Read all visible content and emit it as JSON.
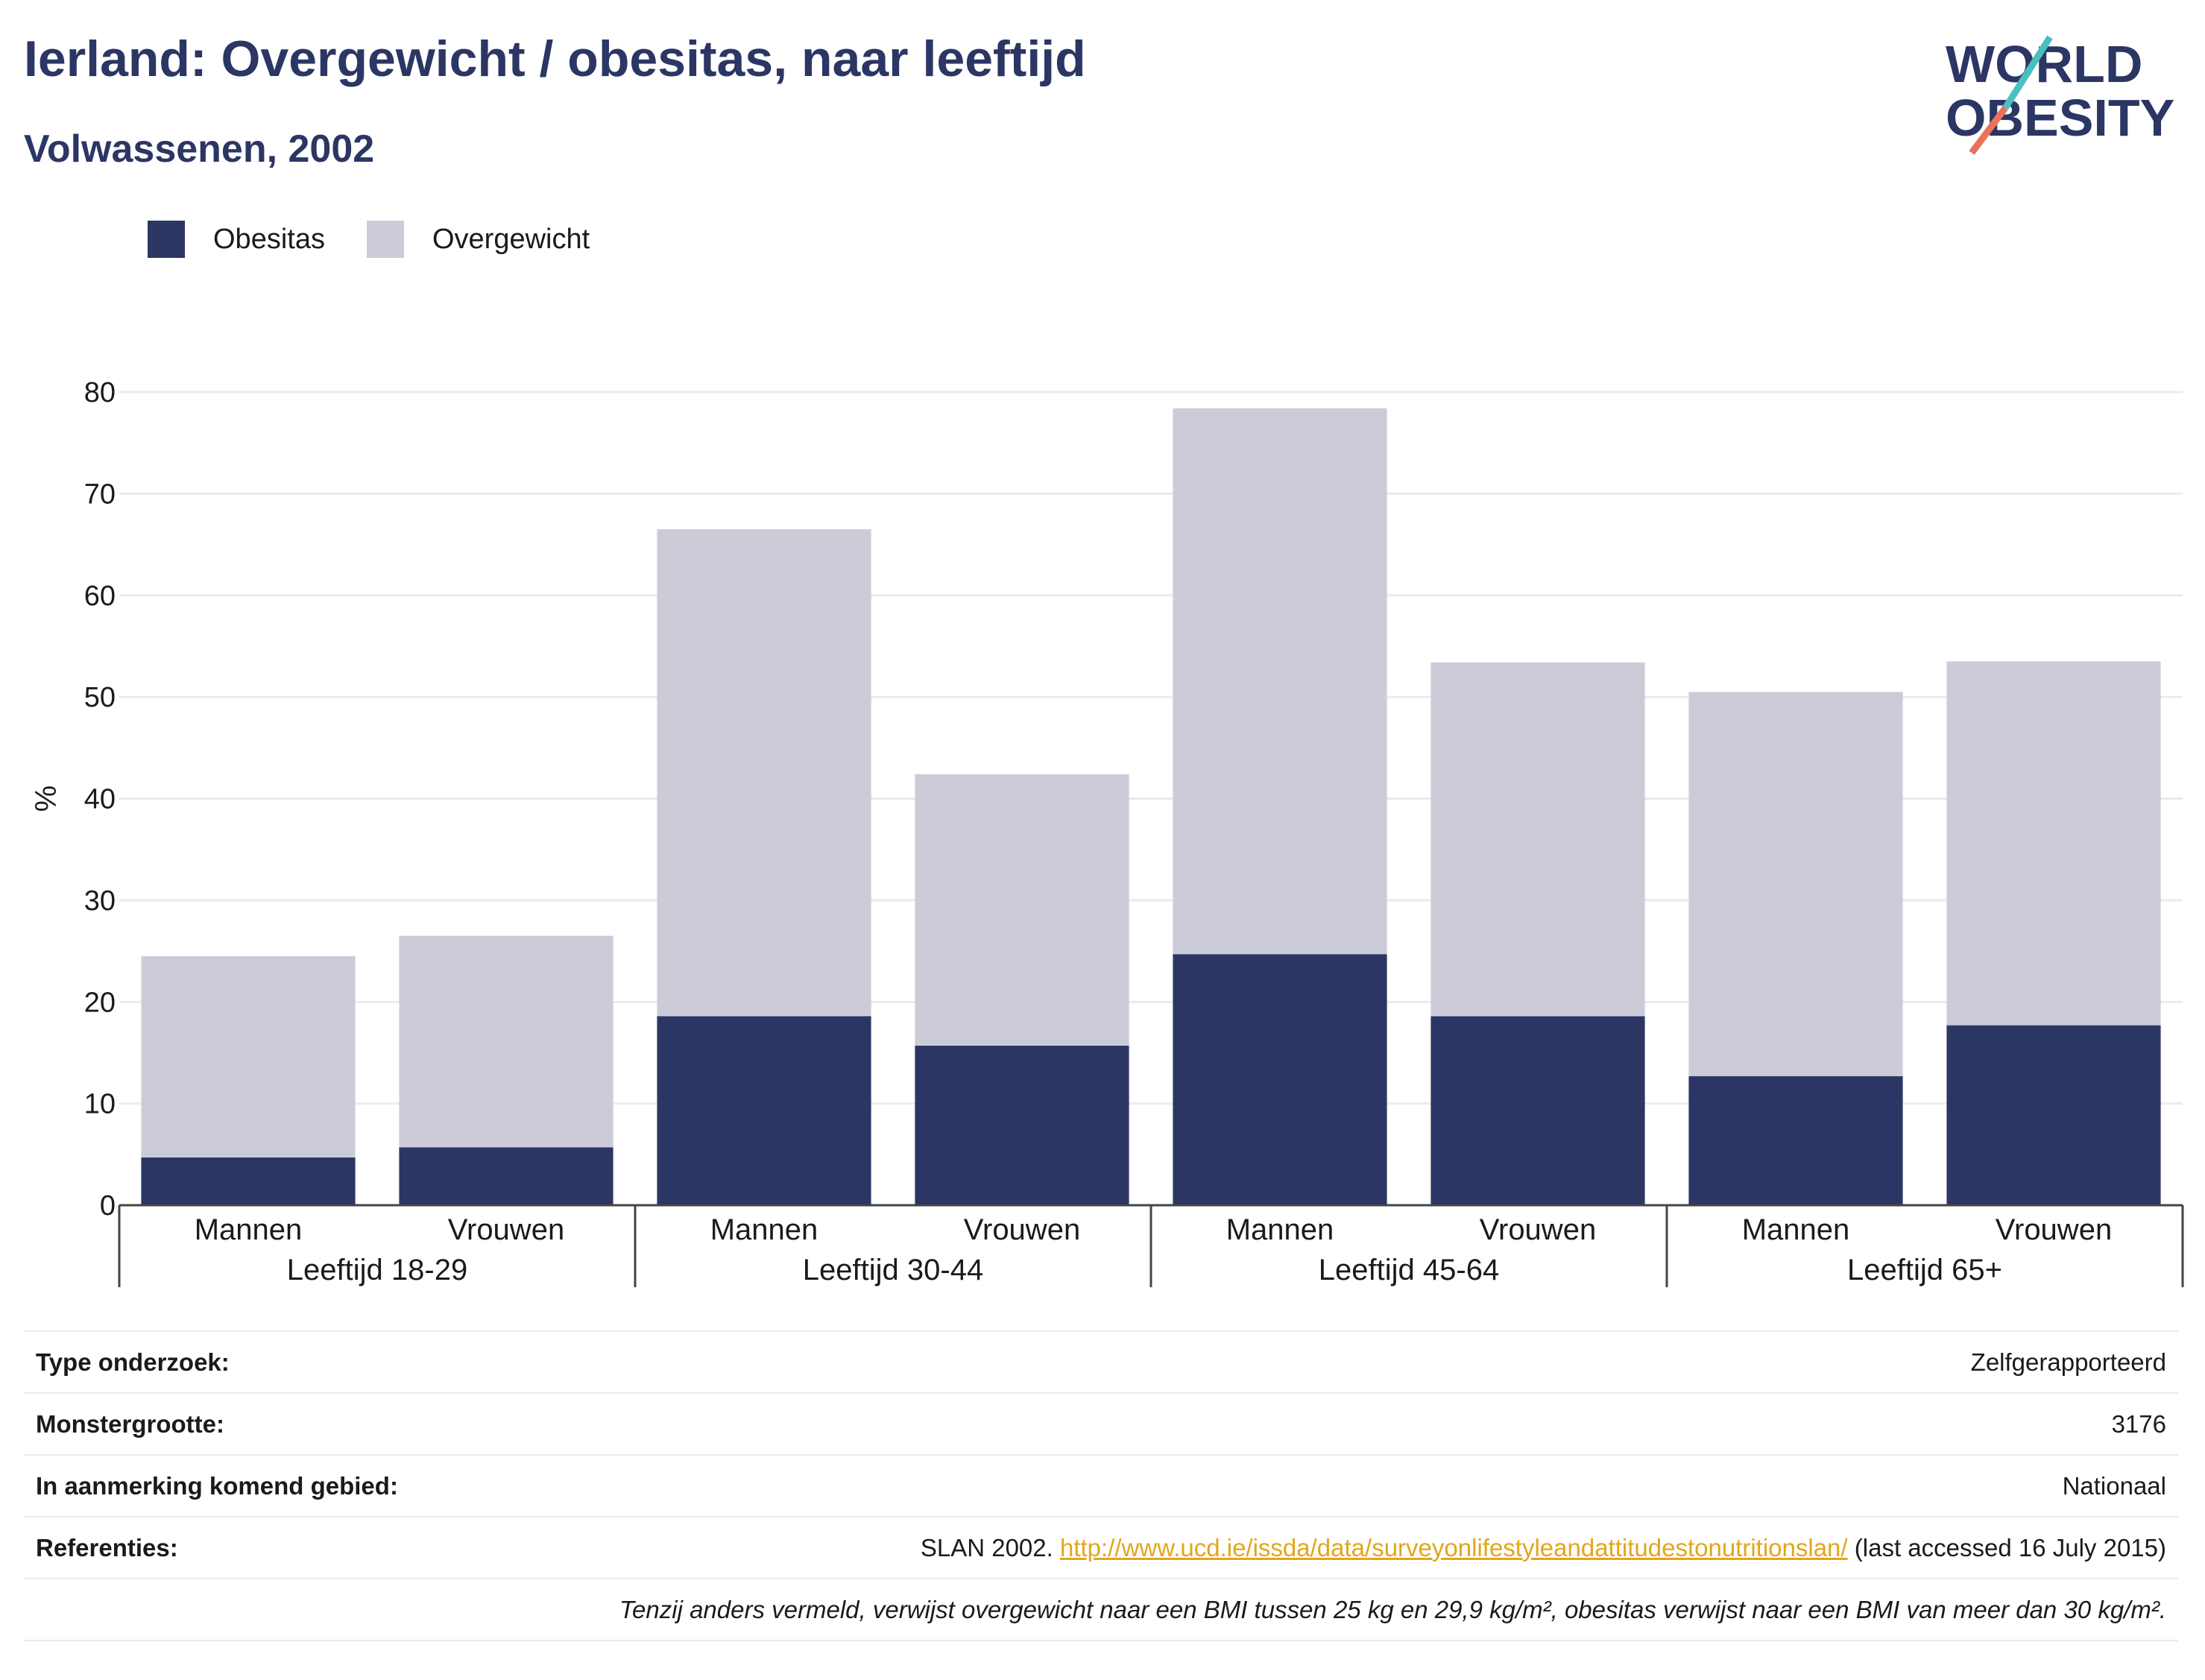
{
  "title": "Ierland: Overgewicht / obesitas, naar leeftijd",
  "subtitle": "Volwassenen, 2002",
  "logo": {
    "line1": "WORLD",
    "line2": "OBESITY",
    "accent_colors": [
      "#4bbfc1",
      "#e8735a"
    ]
  },
  "legend": [
    {
      "label": "Obesitas",
      "color": "#2b3664"
    },
    {
      "label": "Overgewicht",
      "color": "#cbccd8"
    }
  ],
  "chart_data": {
    "type": "bar",
    "stacked": true,
    "title": "Ierland: Overgewicht / obesitas, naar leeftijd",
    "subtitle": "Volwassenen, 2002",
    "xlabel": "",
    "ylabel": "%",
    "ylim": [
      0,
      80
    ],
    "yticks": [
      0,
      10,
      20,
      30,
      40,
      50,
      60,
      70,
      80
    ],
    "grid": true,
    "legend_position": "top-left",
    "groups": [
      {
        "label": "Leeftijd 18-29",
        "categories": [
          "Mannen",
          "Vrouwen"
        ]
      },
      {
        "label": "Leeftijd 30-44",
        "categories": [
          "Mannen",
          "Vrouwen"
        ]
      },
      {
        "label": "Leeftijd 45-64",
        "categories": [
          "Mannen",
          "Vrouwen"
        ]
      },
      {
        "label": "Leeftijd 65+",
        "categories": [
          "Mannen",
          "Vrouwen"
        ]
      }
    ],
    "categories": [
      "Mannen",
      "Vrouwen",
      "Mannen",
      "Vrouwen",
      "Mannen",
      "Vrouwen",
      "Mannen",
      "Vrouwen"
    ],
    "series": [
      {
        "name": "Obesitas",
        "color": "#2b3664",
        "values": [
          4.7,
          5.7,
          18.6,
          15.7,
          24.7,
          18.6,
          12.7,
          17.7
        ]
      },
      {
        "name": "Overgewicht",
        "color": "#cbccd8",
        "values": [
          19.8,
          20.8,
          47.9,
          26.7,
          53.7,
          34.8,
          37.8,
          35.8
        ]
      }
    ]
  },
  "info": [
    {
      "key": "Type onderzoek:",
      "value": "Zelfgerapporteerd"
    },
    {
      "key": "Monstergrootte:",
      "value": "3176"
    },
    {
      "key": "In aanmerking komend gebied:",
      "value": "Nationaal"
    }
  ],
  "references": {
    "key": "Referenties:",
    "prefix": "SLAN 2002.",
    "link": "http://www.ucd.ie/issda/data/surveyonlifestyleandattitudestonutritionslan/",
    "suffix": "(last accessed 16 July 2015)"
  },
  "note": "Tenzij anders vermeld, verwijst overgewicht naar een BMI tussen 25 kg en 29,9 kg/m², obesitas verwijst naar een BMI van meer dan 30 kg/m²."
}
